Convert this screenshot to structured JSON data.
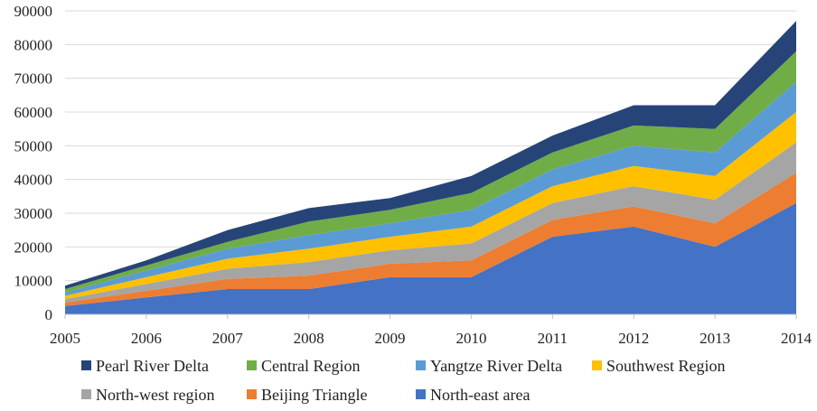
{
  "chart_data": {
    "type": "area",
    "stacked": true,
    "title": "",
    "xlabel": "",
    "ylabel": "",
    "categories": [
      "2005",
      "2006",
      "2007",
      "2008",
      "2009",
      "2010",
      "2011",
      "2012",
      "2013",
      "2014"
    ],
    "ylim": [
      0,
      90000
    ],
    "yticks": [
      0,
      10000,
      20000,
      30000,
      40000,
      50000,
      60000,
      70000,
      80000,
      90000
    ],
    "ytick_labels": [
      "0",
      "10000",
      "20000",
      "30000",
      "40000",
      "50000",
      "60000",
      "70000",
      "80000",
      "90000"
    ],
    "grid": true,
    "legend_position": "bottom",
    "series": [
      {
        "name": "North-east area",
        "color": "#4472C4",
        "values": [
          2500,
          5000,
          7500,
          7500,
          11000,
          11000,
          23000,
          26000,
          20000,
          33000
        ]
      },
      {
        "name": "Beijing Triangle",
        "color": "#ED7D31",
        "values": [
          1000,
          2000,
          3000,
          4000,
          4000,
          5000,
          5000,
          6000,
          7000,
          9000
        ]
      },
      {
        "name": "North-west region",
        "color": "#A5A5A5",
        "values": [
          1000,
          2000,
          3000,
          4000,
          4000,
          5000,
          5000,
          6000,
          7000,
          9000
        ]
      },
      {
        "name": "Southwest Region",
        "color": "#FFC000",
        "values": [
          1000,
          2000,
          3000,
          4000,
          4000,
          5000,
          5000,
          6000,
          7000,
          9000
        ]
      },
      {
        "name": "Yangtze River Delta",
        "color": "#5B9BD5",
        "values": [
          1000,
          2000,
          3000,
          4000,
          4000,
          5000,
          5000,
          6000,
          7000,
          9000
        ]
      },
      {
        "name": "Central Region",
        "color": "#70AD47",
        "values": [
          1000,
          1500,
          2000,
          4000,
          4000,
          5000,
          5000,
          6000,
          7000,
          9000
        ]
      },
      {
        "name": "Pearl River Delta",
        "color": "#264478",
        "values": [
          1000,
          1500,
          3500,
          4000,
          3500,
          5000,
          5000,
          6000,
          7000,
          9000
        ]
      }
    ],
    "legend_order": [
      "Pearl River Delta",
      "Central Region",
      "Yangtze River Delta",
      "Southwest Region",
      "North-west region",
      "Beijing Triangle",
      "North-east area"
    ]
  }
}
